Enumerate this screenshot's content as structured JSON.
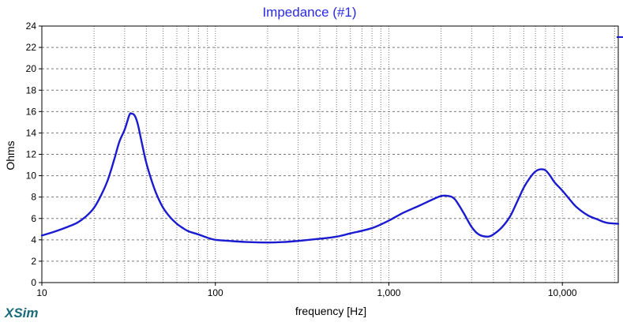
{
  "app": {
    "brand": "XSim",
    "brand_color": "#1a6a78"
  },
  "colors": {
    "title": "#2a2ae0",
    "series": "#1a1ad0",
    "axis": "#000000",
    "grid": "#7a7a7a",
    "text": "#000000",
    "background": "#ffffff"
  },
  "chart_data": {
    "type": "line",
    "title": "Impedance (#1)",
    "xlabel": "frequency [Hz]",
    "ylabel": "Ohms",
    "xscale": "log",
    "xlim": [
      10,
      21000
    ],
    "ylim": [
      0,
      24
    ],
    "grid": true,
    "legend": "none",
    "x_tick_labels": [
      {
        "value": 10,
        "label": "10"
      },
      {
        "value": 100,
        "label": "100"
      },
      {
        "value": 1000,
        "label": "1,000"
      },
      {
        "value": 10000,
        "label": "10,000"
      }
    ],
    "y_tick_labels": [
      {
        "value": 0,
        "label": "0"
      },
      {
        "value": 2,
        "label": "2"
      },
      {
        "value": 4,
        "label": "4"
      },
      {
        "value": 6,
        "label": "6"
      },
      {
        "value": 8,
        "label": "8"
      },
      {
        "value": 10,
        "label": "10"
      },
      {
        "value": 12,
        "label": "12"
      },
      {
        "value": 14,
        "label": "14"
      },
      {
        "value": 16,
        "label": "16"
      },
      {
        "value": 18,
        "label": "18"
      },
      {
        "value": 20,
        "label": "20"
      },
      {
        "value": 22,
        "label": "22"
      },
      {
        "value": 24,
        "label": "24"
      }
    ],
    "series": [
      {
        "x": [
          10,
          12,
          14,
          16,
          18,
          20,
          22,
          24,
          26,
          28,
          30,
          32,
          33,
          34,
          35,
          36,
          38,
          40,
          43,
          46,
          50,
          55,
          60,
          65,
          70,
          80,
          90,
          100,
          120,
          150,
          200,
          250,
          300,
          400,
          500,
          600,
          800,
          1000,
          1200,
          1500,
          1800,
          2000,
          2200,
          2400,
          2700,
          3000,
          3300,
          3700,
          4000,
          4500,
          5000,
          5500,
          6000,
          6500,
          7000,
          7500,
          8000,
          8500,
          9000,
          10000,
          11000,
          12000,
          14000,
          16000,
          18000,
          21000
        ],
        "y": [
          4.4,
          4.8,
          5.2,
          5.6,
          6.2,
          7.0,
          8.2,
          9.6,
          11.4,
          13.2,
          14.3,
          15.7,
          15.8,
          15.7,
          15.3,
          14.6,
          12.8,
          11.2,
          9.5,
          8.2,
          7.0,
          6.1,
          5.5,
          5.1,
          4.8,
          4.5,
          4.2,
          4.0,
          3.9,
          3.8,
          3.75,
          3.8,
          3.9,
          4.1,
          4.3,
          4.6,
          5.1,
          5.8,
          6.5,
          7.2,
          7.8,
          8.1,
          8.1,
          7.8,
          6.5,
          5.2,
          4.5,
          4.3,
          4.5,
          5.2,
          6.2,
          7.6,
          8.9,
          9.8,
          10.4,
          10.6,
          10.5,
          10.0,
          9.4,
          8.6,
          7.8,
          7.1,
          6.3,
          5.9,
          5.6,
          5.5
        ]
      }
    ]
  }
}
